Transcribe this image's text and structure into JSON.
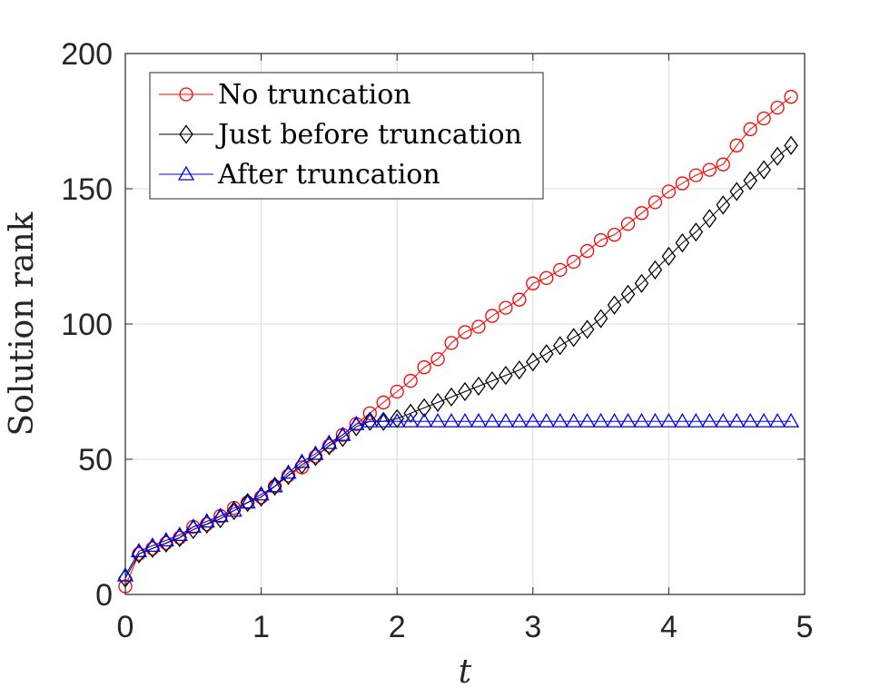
{
  "chart_data": {
    "type": "line",
    "xlabel": "t",
    "ylabel": "Solution rank",
    "xlim": [
      0,
      5
    ],
    "ylim": [
      0,
      200
    ],
    "xticks": [
      "0",
      "1",
      "2",
      "3",
      "4",
      "5"
    ],
    "yticks": [
      "0",
      "50",
      "100",
      "150",
      "200"
    ],
    "grid": true,
    "legend_position": "top-left",
    "series": [
      {
        "name": "No truncation",
        "color": "#ff0000",
        "marker": "circle",
        "x": [
          0.0,
          0.1,
          0.2,
          0.3,
          0.4,
          0.5,
          0.6,
          0.7,
          0.8,
          0.9,
          1.0,
          1.1,
          1.2,
          1.3,
          1.4,
          1.5,
          1.6,
          1.7,
          1.8,
          1.9,
          2.0,
          2.1,
          2.2,
          2.3,
          2.4,
          2.5,
          2.6,
          2.7,
          2.8,
          2.9,
          3.0,
          3.1,
          3.2,
          3.3,
          3.4,
          3.5,
          3.6,
          3.7,
          3.8,
          3.9,
          4.0,
          4.1,
          4.2,
          4.3,
          4.4,
          4.5,
          4.6,
          4.7,
          4.8,
          4.9
        ],
        "y": [
          3,
          15,
          17,
          19,
          21,
          25,
          26,
          29,
          32,
          34,
          36,
          40,
          44,
          47,
          51,
          55,
          59,
          63,
          67,
          71,
          75,
          79,
          84,
          87,
          93,
          97,
          99,
          103,
          106,
          109,
          115,
          117,
          120,
          123,
          127,
          131,
          133,
          137,
          141,
          145,
          149,
          152,
          155,
          157,
          159,
          166,
          172,
          176,
          180,
          184
        ]
      },
      {
        "name": "Just before truncation",
        "color": "#000000",
        "marker": "diamond",
        "x": [
          0.0,
          0.1,
          0.2,
          0.3,
          0.4,
          0.5,
          0.6,
          0.7,
          0.8,
          0.9,
          1.0,
          1.1,
          1.2,
          1.3,
          1.4,
          1.5,
          1.6,
          1.7,
          1.8,
          1.9,
          2.0,
          2.1,
          2.2,
          2.3,
          2.4,
          2.5,
          2.6,
          2.7,
          2.8,
          2.9,
          3.0,
          3.1,
          3.2,
          3.3,
          3.4,
          3.5,
          3.6,
          3.7,
          3.8,
          3.9,
          4.0,
          4.1,
          4.2,
          4.3,
          4.4,
          4.5,
          4.6,
          4.7,
          4.8,
          4.9
        ],
        "y": [
          6,
          15,
          17,
          19,
          21,
          24,
          26,
          28,
          31,
          34,
          36,
          40,
          44,
          48,
          51,
          55,
          58,
          62,
          64,
          64,
          65,
          67,
          69,
          71,
          73,
          75,
          77,
          79,
          81,
          83,
          86,
          89,
          92,
          95,
          98,
          102,
          107,
          111,
          115,
          120,
          125,
          130,
          134,
          139,
          144,
          149,
          153,
          157,
          162,
          166
        ]
      },
      {
        "name": "After truncation",
        "color": "#0000ff",
        "marker": "triangle",
        "x": [
          0.0,
          0.1,
          0.2,
          0.3,
          0.4,
          0.5,
          0.6,
          0.7,
          0.8,
          0.9,
          1.0,
          1.1,
          1.2,
          1.3,
          1.4,
          1.5,
          1.6,
          1.7,
          1.8,
          1.9,
          2.0,
          2.1,
          2.2,
          2.3,
          2.4,
          2.5,
          2.6,
          2.7,
          2.8,
          2.9,
          3.0,
          3.1,
          3.2,
          3.3,
          3.4,
          3.5,
          3.6,
          3.7,
          3.8,
          3.9,
          4.0,
          4.1,
          4.2,
          4.3,
          4.4,
          4.5,
          4.6,
          4.7,
          4.8,
          4.9
        ],
        "y": [
          7,
          16,
          18,
          20,
          22,
          25,
          27,
          29,
          31,
          34,
          37,
          40,
          45,
          49,
          52,
          56,
          59,
          63,
          64,
          64,
          64,
          64,
          64,
          64,
          64,
          64,
          64,
          64,
          64,
          64,
          64,
          64,
          64,
          64,
          64,
          64,
          64,
          64,
          64,
          64,
          64,
          64,
          64,
          64,
          64,
          64,
          64,
          64,
          64,
          64
        ]
      }
    ]
  }
}
